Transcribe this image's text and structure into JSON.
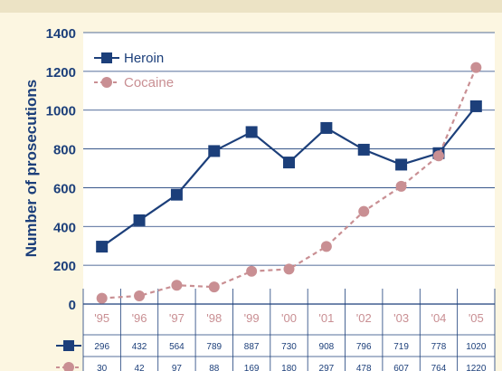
{
  "chart_data": {
    "type": "line",
    "title": "",
    "xlabel": "",
    "ylabel": "Number of prosecutions",
    "categories": [
      "'95",
      "'96",
      "'97",
      "'98",
      "'99",
      "'00",
      "'01",
      "'02",
      "'03",
      "'04",
      "'05"
    ],
    "ylim": [
      0,
      1400
    ],
    "yticks": [
      0,
      200,
      400,
      600,
      800,
      1000,
      1200,
      1400
    ],
    "grid": true,
    "legend_position": "top-left",
    "series": [
      {
        "name": "Heroin",
        "values": [
          296,
          432,
          564,
          789,
          887,
          730,
          908,
          796,
          719,
          778,
          1020
        ],
        "value_labels": [
          "296",
          "432",
          "564",
          "789",
          "887",
          "730",
          "908",
          "796",
          "719",
          "778",
          "1020"
        ],
        "color": "#1c3f7a",
        "marker": "square",
        "line": "solid"
      },
      {
        "name": "Cocaine",
        "values": [
          30,
          42,
          97,
          88,
          169,
          180,
          297,
          478,
          607,
          764,
          1220
        ],
        "value_labels": [
          "30",
          "42",
          "97",
          "88",
          "169",
          "180",
          "297",
          "478",
          "607",
          "764",
          "1220"
        ],
        "color": "#c98f93",
        "marker": "circle",
        "line": "dashed"
      }
    ]
  },
  "colors": {
    "page_background": "#fcf6e1",
    "plot_background": "#ffffff",
    "gridline": "#1c3f7a",
    "axis_text": "#1c3f7a",
    "top_band": "#ece3c5"
  }
}
